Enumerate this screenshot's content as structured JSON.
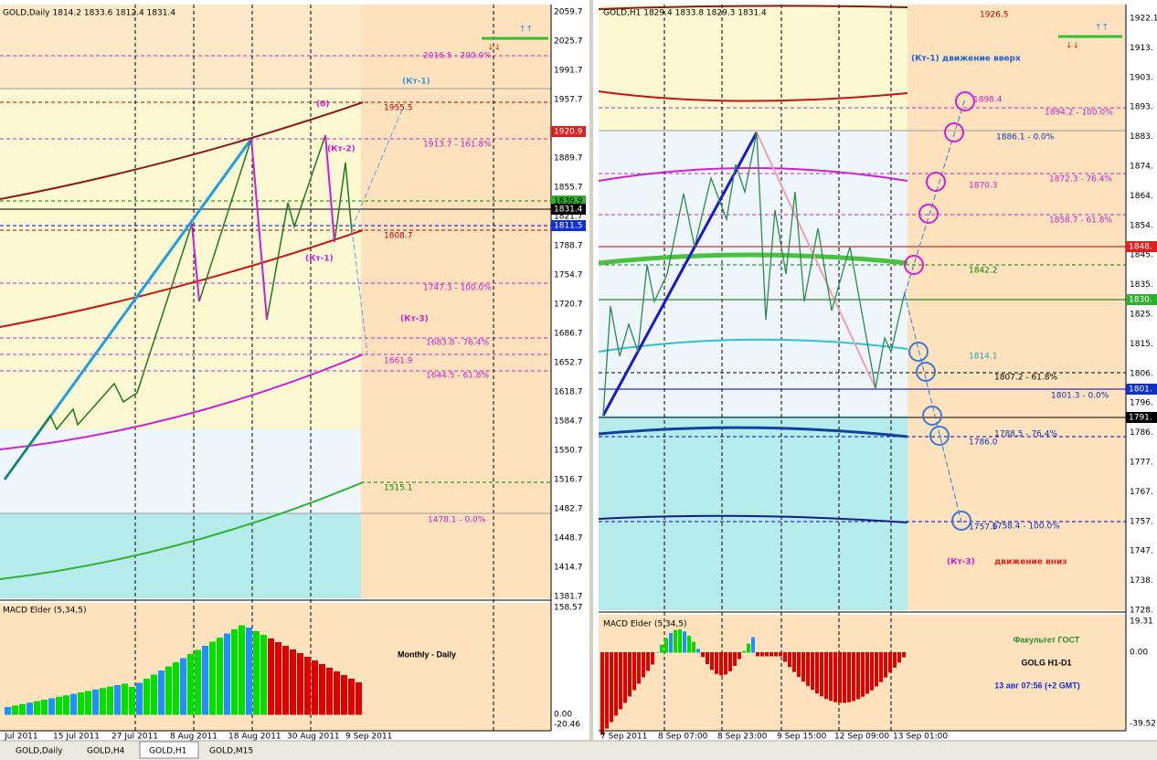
{
  "left_pane": {
    "header": "GOLD,Daily  1814.2 1833.6 1812.4 1831.4",
    "price_axis": [
      "2059.7",
      "2025.7",
      "1991.7",
      "1957.7",
      "1889.7",
      "1855.7",
      "1821.7",
      "1788.7",
      "1754.7",
      "1720.7",
      "1686.7",
      "1652.7",
      "1618.7",
      "1584.7",
      "1550.7",
      "1516.7",
      "1482.7",
      "1448.7",
      "1414.7",
      "1381.7"
    ],
    "price_tags": [
      "1920.9",
      "1839.9",
      "1831.4",
      "1811.5"
    ],
    "level_labels": [
      "2016.5 - 200.0%",
      "1955.5",
      "1913.7 - 161.8%",
      "1808.7",
      "1747.3 - 100.0%",
      "1683.8 - 76.4%",
      "1661.9",
      "1644.5 - 61.8%",
      "1515.1",
      "1478.1 - 0.0%"
    ],
    "annotations": [
      "(Кт-1)",
      "(0)",
      "(Кт-2)",
      "(Кт-1)",
      "(Кт-3)"
    ],
    "indicator": {
      "title": "MACD Elder (5,34,5)",
      "axis": [
        "158.57",
        "0.00",
        "-20.46"
      ]
    },
    "caption": "Monthly - Daily",
    "time_axis": [
      "Jul 2011",
      "15 Jul 2011",
      "27 Jul 2011",
      "8 Aug 2011",
      "18 Aug 2011",
      "30 Aug 2011",
      "9 Sep 2011"
    ]
  },
  "right_pane": {
    "header": "GOLD,H1  1829.4 1833.8 1829.3 1831.4",
    "price_axis": [
      "1922.1",
      "1913.",
      "1903.",
      "1893.",
      "1883.",
      "1874.",
      "1864.",
      "1854.",
      "1845.",
      "1835.",
      "1825.",
      "1815.",
      "1806.",
      "1796.",
      "1786.",
      "1777.",
      "1767.",
      "1757.",
      "1747.",
      "1738.",
      "1728."
    ],
    "price_tags": [
      "1848.",
      "1830.",
      "1801.",
      "1791."
    ],
    "level_labels": [
      "1926.5",
      "1898.4",
      "1894.2 - 100.0%",
      "1886.1 - 0.0%",
      "1870.3",
      "1872.3 - 76.4%",
      "1858.7 - 61.8%",
      "1842.2",
      "1814.1",
      "1807.2 - 61.8%",
      "1801.3 - 0.0%",
      "1788.5 - 76.4%",
      "1786.0",
      "1757.9",
      "1758.4 - 100.0%"
    ],
    "annotations": [
      "(Кт-1)  движение вверх",
      "(Кт-3)",
      "движение вниз"
    ],
    "indicator": {
      "title": "MACD Elder (5,34,5)",
      "axis": [
        "19.31",
        "0.00",
        "-39.52"
      ]
    },
    "captions": [
      "Факультет ГОСТ",
      "GOLG H1-D1",
      "13 авг 07:56 (+2 GMT)"
    ],
    "time_axis": [
      "7 Sep 2011",
      "8 Sep 07:00",
      "8 Sep 23:00",
      "9 Sep 15:00",
      "12 Sep 09:00",
      "13 Sep 01:00"
    ]
  },
  "tabs": [
    "GOLD,Daily",
    "GOLD,H4",
    "GOLD,H1",
    "GOLD,M15"
  ]
}
